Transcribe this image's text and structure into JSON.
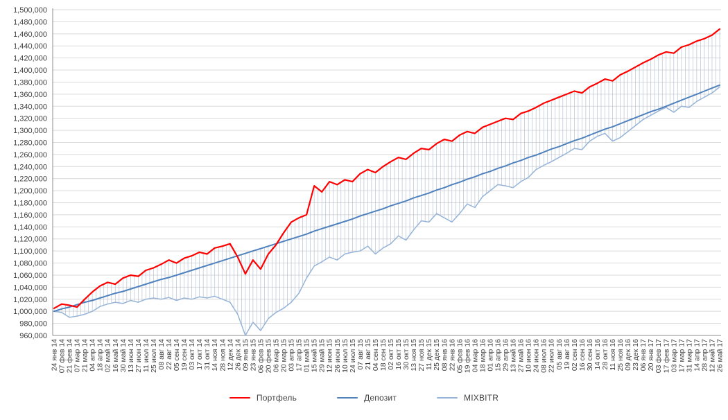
{
  "chart_data": {
    "type": "line",
    "title": "",
    "y_axis": {
      "min": 960000,
      "max": 1500000,
      "step": 20000,
      "tick_format": "#,##0"
    },
    "x_axis": {
      "label_rotation": -90
    },
    "grid": true,
    "grid_color": "#d9d9d9",
    "axis_color": "#8c8c8c",
    "text_color": "#404040",
    "background": "#ffffff",
    "legend_position": "bottom",
    "high_low_lines": {
      "enabled": true,
      "color": "#b3c2d6",
      "width": 0.7
    },
    "categories": [
      "24 янв 14",
      "07 фев 14",
      "21 фев 14",
      "07 мар 14",
      "21 мар 14",
      "04 апр 14",
      "18 апр 14",
      "02 май 14",
      "16 май 14",
      "30 май 14",
      "13 июн 14",
      "27 июн 14",
      "11 июл 14",
      "25 июл 14",
      "08 авг 14",
      "22 авг 14",
      "05 сен 14",
      "19 сен 14",
      "03 окт 14",
      "17 окт 14",
      "31 окт 14",
      "14 ноя 14",
      "28 ноя 14",
      "12 дек 14",
      "26 дек 14",
      "09 янв 15",
      "23 янв 15",
      "06 фев 15",
      "20 фев 15",
      "06 мар 15",
      "20 мар 15",
      "03 апр 15",
      "17 апр 15",
      "01 май 15",
      "15 май 15",
      "29 май 15",
      "12 июн 15",
      "26 июн 15",
      "10 июл 15",
      "24 июл 15",
      "07 авг 15",
      "21 авг 15",
      "04 сен 15",
      "18 сен 15",
      "02 окт 15",
      "16 окт 15",
      "30 окт 15",
      "13 ноя 15",
      "27 ноя 15",
      "11 дек 15",
      "25 дек 15",
      "08 янв 16",
      "22 янв 16",
      "05 фев 16",
      "19 фев 16",
      "04 мар 16",
      "18 мар 16",
      "01 апр 16",
      "15 апр 16",
      "29 апр 16",
      "13 май 16",
      "27 май 16",
      "10 июн 16",
      "24 июн 16",
      "08 июл 16",
      "22 июл 16",
      "05 авг 16",
      "19 авг 16",
      "02 сен 16",
      "16 сен 16",
      "30 сен 16",
      "14 окт 16",
      "28 окт 16",
      "11 ноя 16",
      "25 ноя 16",
      "09 дек 16",
      "23 дек 16",
      "06 янв 17",
      "20 янв 17",
      "03 фев 17",
      "17 фев 17",
      "03 мар 17",
      "17 мар 17",
      "31 мар 17",
      "14 апр 17",
      "28 апр 17",
      "12 май 17",
      "26 май 17"
    ],
    "series": [
      {
        "key": "portfolio",
        "name": "Портфель",
        "color": "#ff0000",
        "stroke_width": 2.2,
        "values": [
          1005000,
          1012000,
          1010000,
          1007000,
          1020000,
          1032000,
          1042000,
          1048000,
          1045000,
          1055000,
          1060000,
          1058000,
          1068000,
          1072000,
          1078000,
          1085000,
          1080000,
          1088000,
          1092000,
          1098000,
          1095000,
          1105000,
          1108000,
          1112000,
          1090000,
          1062000,
          1085000,
          1070000,
          1095000,
          1110000,
          1130000,
          1148000,
          1155000,
          1160000,
          1208000,
          1198000,
          1215000,
          1210000,
          1218000,
          1215000,
          1228000,
          1235000,
          1230000,
          1240000,
          1248000,
          1255000,
          1252000,
          1262000,
          1270000,
          1268000,
          1278000,
          1285000,
          1282000,
          1292000,
          1298000,
          1295000,
          1305000,
          1310000,
          1315000,
          1320000,
          1318000,
          1328000,
          1332000,
          1338000,
          1345000,
          1350000,
          1355000,
          1360000,
          1365000,
          1362000,
          1372000,
          1378000,
          1385000,
          1382000,
          1392000,
          1398000,
          1405000,
          1412000,
          1418000,
          1425000,
          1430000,
          1428000,
          1438000,
          1442000,
          1448000,
          1452000,
          1458000,
          1468000
        ]
      },
      {
        "key": "deposit",
        "name": "Депозит",
        "color": "#4f81bd",
        "stroke_width": 2,
        "values": [
          1000000,
          1004000,
          1007000,
          1011000,
          1015000,
          1018000,
          1022000,
          1026000,
          1030000,
          1033000,
          1037000,
          1041000,
          1045000,
          1049000,
          1053000,
          1056000,
          1060000,
          1064000,
          1068000,
          1072000,
          1076000,
          1080000,
          1084000,
          1088000,
          1092000,
          1096000,
          1100000,
          1104000,
          1108000,
          1112000,
          1116000,
          1120000,
          1124000,
          1128000,
          1133000,
          1137000,
          1141000,
          1145000,
          1149000,
          1153000,
          1158000,
          1162000,
          1166000,
          1170000,
          1175000,
          1179000,
          1183000,
          1188000,
          1192000,
          1196000,
          1201000,
          1205000,
          1210000,
          1214000,
          1219000,
          1223000,
          1228000,
          1232000,
          1237000,
          1241000,
          1246000,
          1250000,
          1255000,
          1259000,
          1264000,
          1269000,
          1273000,
          1278000,
          1283000,
          1287000,
          1292000,
          1297000,
          1302000,
          1306000,
          1311000,
          1316000,
          1321000,
          1326000,
          1331000,
          1335000,
          1340000,
          1345000,
          1350000,
          1355000,
          1360000,
          1365000,
          1370000,
          1375000
        ]
      },
      {
        "key": "mixbitr",
        "name": "MIXBITR",
        "color": "#95b3d7",
        "stroke_width": 1.5,
        "values": [
          1000000,
          998000,
          990000,
          992000,
          995000,
          1000000,
          1008000,
          1012000,
          1015000,
          1013000,
          1018000,
          1015000,
          1020000,
          1022000,
          1020000,
          1023000,
          1018000,
          1022000,
          1020000,
          1024000,
          1022000,
          1025000,
          1020000,
          1015000,
          995000,
          960000,
          982000,
          968000,
          988000,
          998000,
          1005000,
          1015000,
          1030000,
          1055000,
          1075000,
          1082000,
          1090000,
          1085000,
          1095000,
          1098000,
          1100000,
          1108000,
          1095000,
          1105000,
          1112000,
          1125000,
          1118000,
          1135000,
          1150000,
          1148000,
          1162000,
          1155000,
          1148000,
          1162000,
          1178000,
          1172000,
          1190000,
          1200000,
          1210000,
          1208000,
          1205000,
          1215000,
          1222000,
          1235000,
          1242000,
          1248000,
          1255000,
          1262000,
          1270000,
          1268000,
          1282000,
          1290000,
          1295000,
          1282000,
          1288000,
          1298000,
          1308000,
          1318000,
          1325000,
          1332000,
          1338000,
          1330000,
          1340000,
          1338000,
          1348000,
          1355000,
          1362000,
          1372000
        ]
      }
    ]
  }
}
